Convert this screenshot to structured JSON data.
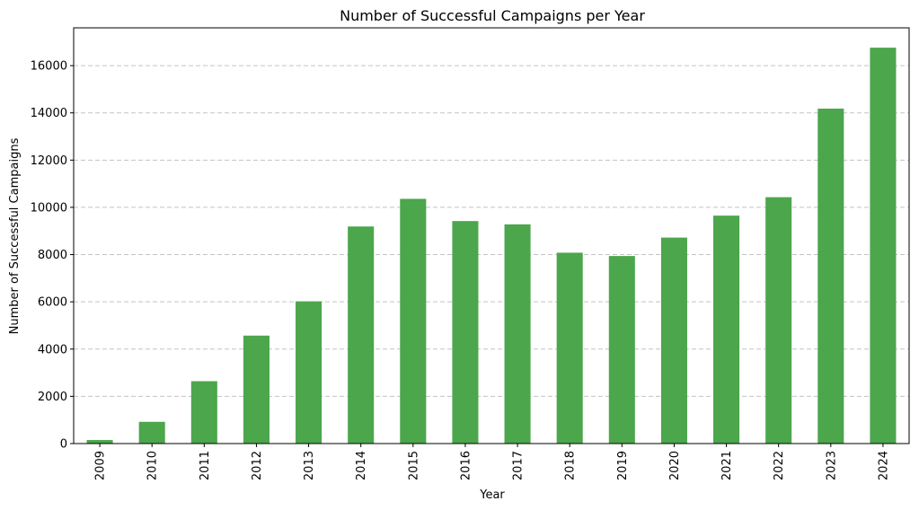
{
  "chart_data": {
    "type": "bar",
    "title": "Number of Successful Campaigns per Year",
    "xlabel": "Year",
    "ylabel": "Number of Successful Campaigns",
    "categories": [
      "2009",
      "2010",
      "2011",
      "2012",
      "2013",
      "2014",
      "2015",
      "2016",
      "2017",
      "2018",
      "2019",
      "2020",
      "2021",
      "2022",
      "2023",
      "2024"
    ],
    "values": [
      150,
      920,
      2640,
      4570,
      6020,
      9190,
      10360,
      9420,
      9280,
      8080,
      7940,
      8720,
      9650,
      10430,
      14180,
      16760
    ],
    "ylim": [
      0,
      17600
    ],
    "yticks": [
      0,
      2000,
      4000,
      6000,
      8000,
      10000,
      12000,
      14000,
      16000
    ],
    "grid": "y-dashed",
    "legend": "none",
    "bar_color": "#4ca64c"
  }
}
